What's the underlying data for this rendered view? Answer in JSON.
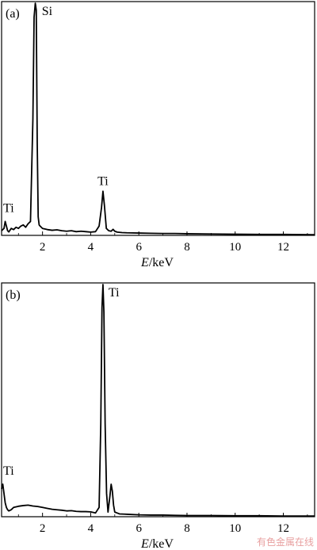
{
  "chart_data": [
    {
      "type": "line",
      "panel_label": "(a)",
      "xlabel_italic": "E",
      "xlabel_unit": "/keV",
      "xlim": [
        0.3,
        13.3
      ],
      "ylim": [
        0,
        100
      ],
      "x_ticks": [
        "2",
        "4",
        "6",
        "8",
        "10",
        "12"
      ],
      "x_tick_values": [
        2,
        4,
        6,
        8,
        10,
        12
      ],
      "annotations": [
        {
          "text": "Si",
          "x": 1.74,
          "y": 100
        },
        {
          "text": "Ti",
          "x": 4.51,
          "y": 19
        },
        {
          "text": "Ti",
          "x": 0.45,
          "y": 8
        }
      ],
      "x": [
        0.3,
        0.4,
        0.45,
        0.5,
        0.55,
        0.6,
        0.7,
        0.8,
        0.9,
        1.0,
        1.1,
        1.2,
        1.3,
        1.4,
        1.5,
        1.6,
        1.65,
        1.7,
        1.74,
        1.78,
        1.82,
        1.86,
        1.9,
        2.0,
        2.2,
        2.4,
        2.6,
        2.8,
        3.0,
        3.2,
        3.4,
        3.6,
        3.8,
        4.0,
        4.2,
        4.35,
        4.45,
        4.51,
        4.57,
        4.65,
        4.75,
        4.85,
        4.93,
        5.0,
        5.1,
        5.3,
        5.5,
        6.0,
        6.5,
        7.0,
        7.5,
        8.0,
        9.0,
        10.0,
        11.0,
        12.0,
        13.3
      ],
      "y": [
        2,
        3,
        6,
        4,
        2,
        1.5,
        3,
        2.5,
        3.5,
        3,
        4,
        4.5,
        3.5,
        5,
        6,
        50,
        94,
        100,
        97,
        40,
        8,
        4.5,
        4,
        3,
        2.5,
        2.2,
        2.4,
        2.0,
        1.8,
        2.0,
        1.6,
        1.8,
        1.6,
        1.4,
        1.6,
        4,
        12,
        19,
        13,
        3,
        2,
        1.8,
        2.6,
        1.8,
        1.4,
        1.2,
        1.1,
        1.0,
        0.9,
        0.8,
        0.8,
        0.7,
        0.6,
        0.5,
        0.4,
        0.4,
        0.3
      ]
    },
    {
      "type": "line",
      "panel_label": "(b)",
      "xlabel_italic": "E",
      "xlabel_unit": "/keV",
      "xlim": [
        0.3,
        13.3
      ],
      "ylim": [
        0,
        100
      ],
      "x_ticks": [
        "2",
        "4",
        "6",
        "8",
        "10",
        "12"
      ],
      "x_tick_values": [
        2,
        4,
        6,
        8,
        10,
        12
      ],
      "annotations": [
        {
          "text": "Ti",
          "x": 4.51,
          "y": 100
        },
        {
          "text": "Ti",
          "x": 0.45,
          "y": 16
        }
      ],
      "x": [
        0.3,
        0.35,
        0.4,
        0.45,
        0.5,
        0.55,
        0.6,
        0.7,
        0.8,
        1.0,
        1.2,
        1.4,
        1.6,
        1.8,
        2.0,
        2.2,
        2.4,
        2.6,
        2.8,
        3.0,
        3.2,
        3.4,
        3.6,
        3.8,
        4.0,
        4.2,
        4.35,
        4.42,
        4.47,
        4.51,
        4.55,
        4.6,
        4.66,
        4.72,
        4.8,
        4.85,
        4.9,
        4.95,
        5.0,
        5.1,
        5.2,
        5.4,
        5.6,
        6.0,
        6.5,
        7.0,
        7.5,
        8.0,
        9.0,
        10.0,
        11.0,
        12.0,
        13.3
      ],
      "y": [
        12,
        14,
        10,
        6,
        4,
        3,
        2.5,
        3,
        4,
        4.5,
        4.8,
        5,
        4.6,
        4.4,
        4,
        3.6,
        3.2,
        3,
        2.8,
        2.5,
        2.6,
        2.3,
        2.2,
        2.2,
        2.1,
        1.6,
        4,
        40,
        90,
        100,
        88,
        40,
        10,
        2,
        9,
        14,
        11,
        5,
        2,
        1.6,
        1.2,
        1.1,
        1.0,
        0.8,
        0.7,
        0.7,
        0.6,
        0.5,
        0.5,
        0.4,
        0.4,
        0.3,
        0.3
      ]
    }
  ],
  "watermark": "有色金属在线"
}
